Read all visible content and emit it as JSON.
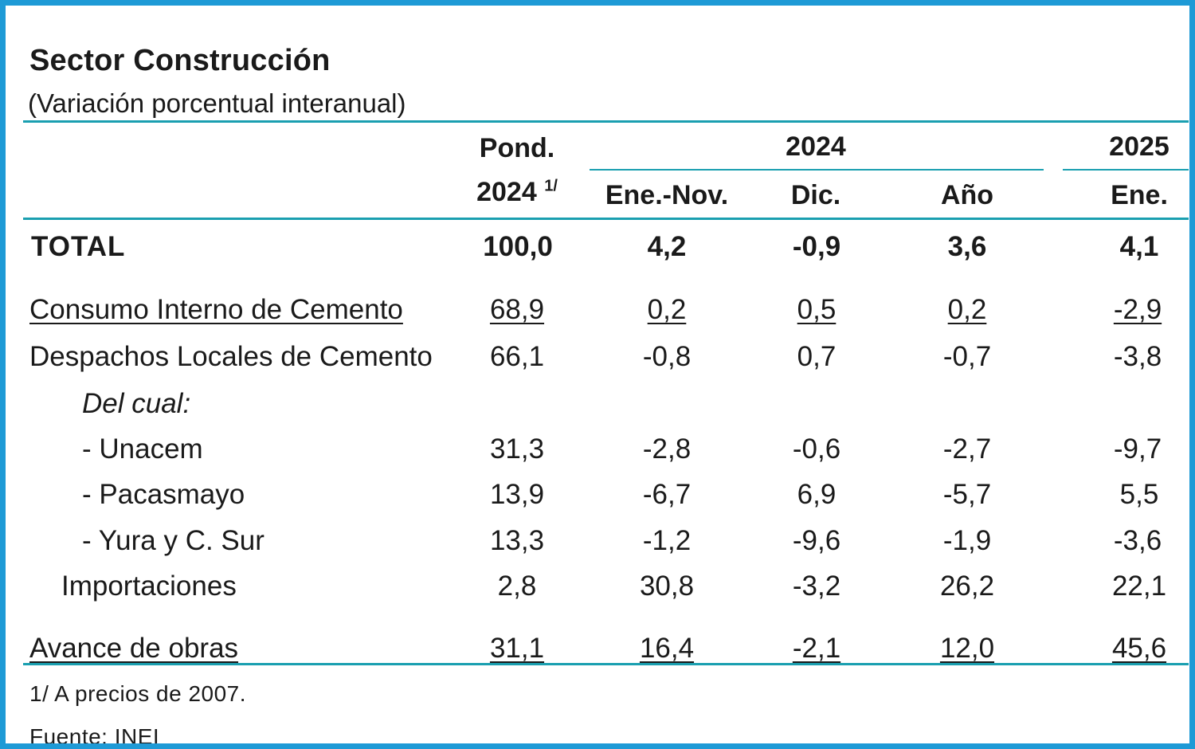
{
  "title": "Sector Construcción",
  "subtitle": "(Variación porcentual interanual)",
  "header": {
    "pond_line1": "Pond.",
    "pond_line2": "2024",
    "pond_note": "1/",
    "group_2024": "2024",
    "group_2025": "2025",
    "col_ene_nov": "Ene.-Nov.",
    "col_dic": "Dic.",
    "col_anio": "Año",
    "col_ene": "Ene."
  },
  "rows": [
    {
      "label": "TOTAL",
      "pond": "100,0",
      "ene_nov": "4,2",
      "dic": "-0,9",
      "anio": "3,6",
      "ene": "4,1"
    },
    {
      "label": "Consumo Interno de Cemento",
      "pond": "68,9",
      "ene_nov": "0,2",
      "dic": "0,5",
      "anio": "0,2",
      "ene": "-2,9"
    },
    {
      "label": "Despachos Locales de Cemento",
      "pond": "66,1",
      "ene_nov": "-0,8",
      "dic": "0,7",
      "anio": "-0,7",
      "ene": "-3,8"
    },
    {
      "label": "Del cual:"
    },
    {
      "label": "- Unacem",
      "pond": "31,3",
      "ene_nov": "-2,8",
      "dic": "-0,6",
      "anio": "-2,7",
      "ene": "-9,7"
    },
    {
      "label": "- Pacasmayo",
      "pond": "13,9",
      "ene_nov": "-6,7",
      "dic": "6,9",
      "anio": "-5,7",
      "ene": "5,5"
    },
    {
      "label": "- Yura y C. Sur",
      "pond": "13,3",
      "ene_nov": "-1,2",
      "dic": "-9,6",
      "anio": "-1,9",
      "ene": "-3,6"
    },
    {
      "label": "Importaciones",
      "pond": "2,8",
      "ene_nov": "30,8",
      "dic": "-3,2",
      "anio": "26,2",
      "ene": "22,1"
    },
    {
      "label": "Avance de obras",
      "pond": "31,1",
      "ene_nov": "16,4",
      "dic": "-2,1",
      "anio": "12,0",
      "ene": "45,6"
    }
  ],
  "footnote": "1/ A precios de 2007.",
  "source": "Fuente: INEI",
  "colors": {
    "border": "#1e9ad6",
    "rule": "#1a9fb0",
    "text": "#1a1a1a"
  }
}
